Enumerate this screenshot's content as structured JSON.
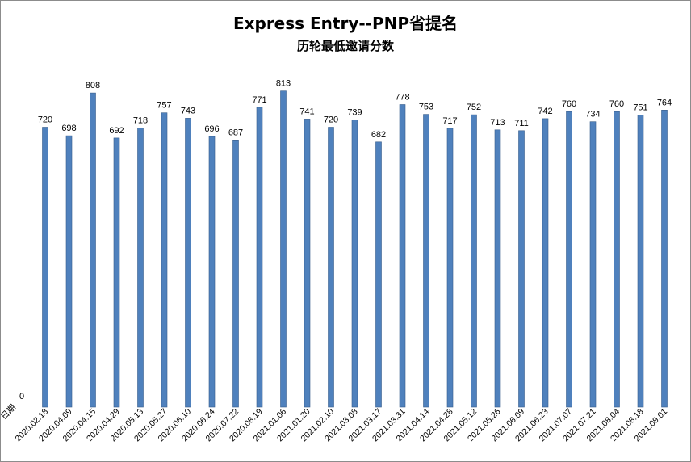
{
  "chart_data": {
    "type": "bar",
    "title": "Express Entry--PNP省提名",
    "subtitle": "历轮最低邀请分数",
    "xlabel": "日期",
    "ylabel": "",
    "ylim": [
      0,
      850
    ],
    "y_tick_labels": [
      "0"
    ],
    "grid": false,
    "legend": "none",
    "bar_color": "#4f81bd",
    "categories": [
      "2020.02.18",
      "2020.04.09",
      "2020.04.15",
      "2020.04.29",
      "2020.05.13",
      "2020.05.27",
      "2020.06.10",
      "2020.06.24",
      "2020.07.22",
      "2020.08.19",
      "2021.01.06",
      "2021.01.20",
      "2021.02.10",
      "2021.03.08",
      "2021.03.17",
      "2021.03.31",
      "2021.04.14",
      "2021.04.28",
      "2021.05.12",
      "2021.05.26",
      "2021.06.09",
      "2021.06.23",
      "2021.07.07",
      "2021.07.21",
      "2021.08.04",
      "2021.08.18",
      "2021.09.01"
    ],
    "values": [
      720,
      698,
      808,
      692,
      718,
      757,
      743,
      696,
      687,
      771,
      813,
      741,
      720,
      739,
      682,
      778,
      753,
      717,
      752,
      713,
      711,
      742,
      760,
      734,
      760,
      751,
      764
    ]
  }
}
